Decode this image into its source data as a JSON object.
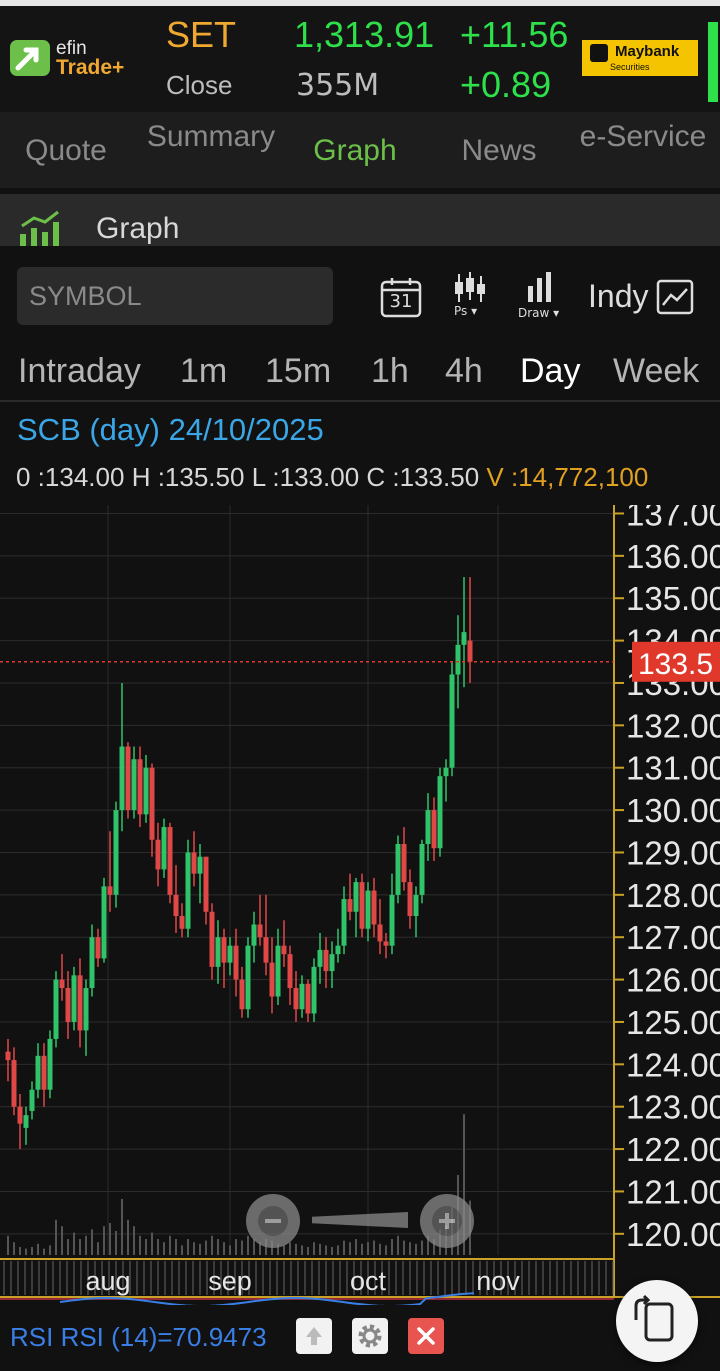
{
  "header": {
    "logo_top": "efin",
    "logo_bottom": "Trade+",
    "market": "SET",
    "status": "Close",
    "index_value": "1,313.91",
    "volume": "355M",
    "change": "+11.56",
    "change_pct": "+0.89",
    "broker": "Maybank",
    "broker_sub": "Securities"
  },
  "nav": {
    "tabs": [
      {
        "label": "Quote",
        "active": false
      },
      {
        "label": "Summary",
        "active": false
      },
      {
        "label": "Graph",
        "active": true
      },
      {
        "label": "News",
        "active": false
      },
      {
        "label": "e-Service",
        "active": false
      }
    ]
  },
  "graph_bar": {
    "title": "Graph"
  },
  "toolbar": {
    "symbol_placeholder": "SYMBOL",
    "calendar_day": "31",
    "ps_label": "Ps",
    "draw_label": "Draw",
    "indy_label": "Indy"
  },
  "timeframes": [
    {
      "label": "Intraday",
      "active": false
    },
    {
      "label": "1m",
      "active": false
    },
    {
      "label": "15m",
      "active": false
    },
    {
      "label": "1h",
      "active": false
    },
    {
      "label": "4h",
      "active": false
    },
    {
      "label": "Day",
      "active": true
    },
    {
      "label": "Week",
      "active": false
    }
  ],
  "info": {
    "title": "SCB (day) 24/10/2025",
    "o_label": "0 :",
    "o": "134.00",
    "h_label": "H :",
    "h": "135.50",
    "l_label": "L :",
    "l": "133.00",
    "c_label": "C :",
    "c": "133.50",
    "v_label": "V :",
    "v": "14,772,100"
  },
  "chart_data": {
    "type": "candlestick",
    "ylim": [
      119.5,
      137.2
    ],
    "y_ticks": [
      "120.00",
      "121.00",
      "122.00",
      "123.00",
      "124.00",
      "125.00",
      "126.00",
      "127.00",
      "128.00",
      "129.00",
      "130.00",
      "131.00",
      "132.00",
      "133.00",
      "134.00",
      "135.00",
      "136.00",
      "137.00"
    ],
    "x_ticks": [
      "aug",
      "sep",
      "oct",
      "nov"
    ],
    "last_price": "133.5",
    "colors": {
      "up": "#2fc46a",
      "down": "#e04848",
      "flat": "#e0a020",
      "grid": "#2c2c2c",
      "axis": "#c9a227",
      "last": "#e0392b"
    },
    "candles": [
      [
        124.3,
        124.6,
        123.6,
        124.1
      ],
      [
        124.1,
        124.4,
        122.8,
        123.0
      ],
      [
        123.0,
        123.3,
        122.0,
        122.6
      ],
      [
        122.5,
        123.0,
        122.1,
        122.8
      ],
      [
        122.9,
        123.6,
        122.7,
        123.4
      ],
      [
        123.4,
        124.5,
        123.2,
        124.2
      ],
      [
        124.2,
        124.5,
        123.0,
        123.4
      ],
      [
        123.4,
        124.8,
        123.2,
        124.6
      ],
      [
        124.6,
        126.2,
        124.4,
        126.0
      ],
      [
        126.0,
        126.6,
        125.5,
        125.8
      ],
      [
        125.8,
        126.2,
        124.6,
        125.0
      ],
      [
        125.0,
        126.3,
        124.8,
        126.1
      ],
      [
        126.1,
        126.5,
        124.4,
        124.8
      ],
      [
        124.8,
        126.0,
        124.2,
        125.8
      ],
      [
        125.8,
        127.3,
        125.6,
        127.0
      ],
      [
        127.0,
        127.2,
        126.3,
        126.5
      ],
      [
        126.5,
        128.4,
        126.4,
        128.2
      ],
      [
        128.2,
        129.5,
        127.6,
        128.0
      ],
      [
        128.0,
        130.2,
        127.7,
        130.0
      ],
      [
        130.0,
        133.0,
        129.5,
        131.5
      ],
      [
        131.5,
        131.6,
        129.8,
        130.0
      ],
      [
        130.0,
        131.5,
        129.8,
        131.2
      ],
      [
        131.2,
        131.5,
        129.6,
        129.9
      ],
      [
        129.9,
        131.3,
        129.7,
        131.0
      ],
      [
        131.0,
        131.1,
        128.9,
        129.3
      ],
      [
        129.3,
        129.7,
        128.2,
        128.6
      ],
      [
        128.6,
        129.8,
        128.4,
        129.6
      ],
      [
        129.6,
        129.7,
        127.8,
        128.0
      ],
      [
        128.0,
        128.7,
        127.1,
        127.5
      ],
      [
        127.5,
        127.8,
        127.0,
        127.2
      ],
      [
        127.2,
        129.3,
        127.0,
        129.0
      ],
      [
        129.0,
        129.5,
        128.2,
        128.5
      ],
      [
        128.5,
        129.2,
        127.8,
        128.9
      ],
      [
        128.9,
        128.8,
        127.3,
        127.6
      ],
      [
        127.6,
        127.8,
        126.0,
        126.3
      ],
      [
        126.3,
        127.4,
        125.9,
        127.0
      ],
      [
        127.0,
        127.2,
        125.8,
        126.4
      ],
      [
        126.4,
        127.0,
        126.1,
        126.8
      ],
      [
        126.8,
        127.2,
        125.6,
        126.0
      ],
      [
        126.0,
        126.3,
        125.1,
        125.3
      ],
      [
        125.3,
        127.0,
        125.1,
        126.8
      ],
      [
        126.8,
        127.6,
        126.4,
        127.3
      ],
      [
        127.3,
        128.0,
        126.8,
        127.0
      ],
      [
        127.0,
        128.0,
        126.1,
        126.4
      ],
      [
        126.4,
        127.0,
        125.2,
        125.6
      ],
      [
        125.6,
        127.2,
        125.4,
        126.8
      ],
      [
        126.8,
        127.4,
        126.3,
        126.6
      ],
      [
        126.6,
        126.8,
        125.4,
        125.8
      ],
      [
        125.8,
        126.2,
        125.0,
        125.3
      ],
      [
        125.3,
        126.1,
        125.1,
        125.9
      ],
      [
        125.9,
        126.0,
        125.0,
        125.2
      ],
      [
        125.2,
        126.5,
        125.0,
        126.3
      ],
      [
        126.3,
        127.1,
        125.9,
        126.7
      ],
      [
        126.7,
        127.0,
        125.8,
        126.2
      ],
      [
        126.2,
        126.9,
        125.8,
        126.6
      ],
      [
        126.6,
        127.2,
        126.4,
        126.8
      ],
      [
        126.8,
        128.2,
        126.6,
        127.9
      ],
      [
        127.9,
        128.5,
        127.4,
        127.6
      ],
      [
        127.6,
        128.4,
        127.0,
        128.3
      ],
      [
        128.3,
        128.5,
        127.0,
        127.2
      ],
      [
        127.2,
        128.3,
        126.9,
        128.1
      ],
      [
        128.1,
        128.4,
        127.0,
        127.3
      ],
      [
        127.3,
        127.9,
        126.6,
        126.9
      ],
      [
        126.9,
        127.1,
        126.5,
        126.8
      ],
      [
        126.8,
        128.5,
        126.6,
        128.0
      ],
      [
        128.0,
        129.4,
        127.8,
        129.2
      ],
      [
        129.2,
        129.6,
        128.1,
        128.3
      ],
      [
        128.3,
        128.6,
        127.2,
        127.5
      ],
      [
        127.5,
        128.2,
        127.0,
        128.0
      ],
      [
        128.0,
        129.3,
        127.8,
        129.2
      ],
      [
        129.2,
        130.4,
        128.8,
        130.0
      ],
      [
        130.0,
        130.3,
        128.8,
        129.1
      ],
      [
        129.1,
        131.0,
        128.9,
        130.8
      ],
      [
        130.8,
        131.2,
        130.2,
        131.0
      ],
      [
        131.0,
        133.5,
        130.8,
        133.2
      ],
      [
        133.2,
        134.6,
        132.4,
        133.9
      ],
      [
        133.9,
        135.5,
        132.9,
        134.2
      ],
      [
        134.0,
        135.5,
        133.0,
        133.5
      ]
    ],
    "volumes": [
      0.12,
      0.08,
      0.05,
      0.04,
      0.05,
      0.07,
      0.04,
      0.06,
      0.22,
      0.18,
      0.1,
      0.14,
      0.1,
      0.12,
      0.16,
      0.08,
      0.18,
      0.2,
      0.15,
      0.35,
      0.22,
      0.18,
      0.12,
      0.1,
      0.14,
      0.1,
      0.08,
      0.12,
      0.1,
      0.06,
      0.1,
      0.08,
      0.07,
      0.09,
      0.12,
      0.1,
      0.08,
      0.06,
      0.1,
      0.09,
      0.12,
      0.1,
      0.08,
      0.1,
      0.09,
      0.07,
      0.06,
      0.08,
      0.07,
      0.06,
      0.05,
      0.08,
      0.07,
      0.06,
      0.05,
      0.06,
      0.09,
      0.08,
      0.1,
      0.07,
      0.08,
      0.09,
      0.07,
      0.06,
      0.1,
      0.12,
      0.09,
      0.08,
      0.07,
      0.09,
      0.12,
      0.1,
      0.16,
      0.18,
      0.3,
      0.5,
      0.88,
      0.34
    ],
    "rsi": {
      "label": "RSI RSI (14)=70.9473",
      "value": 70.9473
    }
  }
}
